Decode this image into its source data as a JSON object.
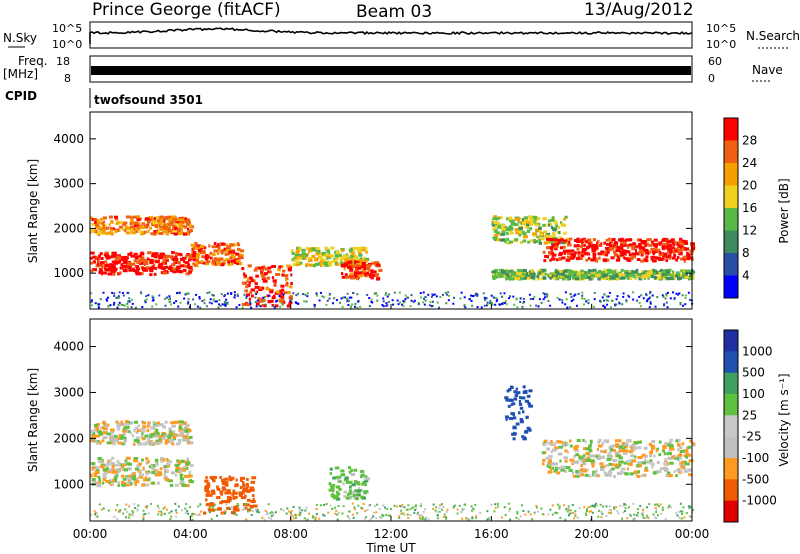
{
  "header": {
    "station": "Prince George (fitACF)",
    "beam": "Beam 03",
    "date": "13/Aug/2012"
  },
  "top_panels": {
    "nsky_label": "N.Sky",
    "nsky_ticks": [
      "10^5",
      "10^0"
    ],
    "nsearch_label": "N.Search",
    "nsearch_ticks": [
      "10^5",
      "10^0"
    ],
    "freq_label_line1": "Freq.",
    "freq_label_line2": "[MHz]",
    "freq_ticks": [
      "18",
      "8"
    ],
    "nave_label": "Nave",
    "nave_ticks": [
      "60",
      "0"
    ],
    "cpid_label": "CPID",
    "cpid_value": "twofsound  3501"
  },
  "colors": {
    "power_scale": [
      "#0000ff",
      "#2b4ea5",
      "#3d8a5c",
      "#58b947",
      "#f0d020",
      "#f5a000",
      "#f06010",
      "#ff0000"
    ],
    "velocity_scale": [
      "#e00000",
      "#f05a00",
      "#ff9a20",
      "#c0c0c0",
      "#c8c8c8",
      "#60c040",
      "#40a060",
      "#2050b0",
      "#2030a0"
    ]
  },
  "chart_data": [
    {
      "type": "heatmap",
      "name": "power_panel",
      "ylabel": "Slant Range [km]",
      "yticks": [
        "4000",
        "3000",
        "2000",
        "1000"
      ],
      "ylim": [
        200,
        4600
      ],
      "xlim": [
        "00:00",
        "24:00"
      ],
      "colorbar_label": "Power [dB]",
      "colorbar_ticks": [
        "28",
        "24",
        "20",
        "16",
        "12",
        "8",
        "4"
      ],
      "bands": [
        {
          "x": [
            0,
            4
          ],
          "y": [
            1900,
            2300
          ],
          "v": 22
        },
        {
          "x": [
            0,
            4
          ],
          "y": [
            1000,
            1500
          ],
          "v": 28
        },
        {
          "x": [
            4,
            6
          ],
          "y": [
            1200,
            1700
          ],
          "v": 24
        },
        {
          "x": [
            6,
            8
          ],
          "y": [
            300,
            1200
          ],
          "v": 26
        },
        {
          "x": [
            8,
            11
          ],
          "y": [
            1200,
            1600
          ],
          "v": 16
        },
        {
          "x": [
            10,
            11.5
          ],
          "y": [
            900,
            1300
          ],
          "v": 26
        },
        {
          "x": [
            16,
            19
          ],
          "y": [
            1700,
            2300
          ],
          "v": 14
        },
        {
          "x": [
            18,
            24
          ],
          "y": [
            1300,
            1800
          ],
          "v": 28
        },
        {
          "x": [
            16,
            24
          ],
          "y": [
            900,
            1100
          ],
          "v": 12
        }
      ]
    },
    {
      "type": "heatmap",
      "name": "velocity_panel",
      "ylabel": "Slant Range [km]",
      "yticks": [
        "4000",
        "3000",
        "2000",
        "1000"
      ],
      "ylim": [
        200,
        4600
      ],
      "xlim": [
        "00:00",
        "24:00"
      ],
      "xticks": [
        "00:00",
        "04:00",
        "08:00",
        "12:00",
        "16:00",
        "20:00",
        "00:00"
      ],
      "xlabel": "Time UT",
      "colorbar_label": "Velocity [m s⁻¹]",
      "colorbar_ticks": [
        "1000",
        "500",
        "100",
        "25",
        "-25",
        "-100",
        "-500",
        "-1000"
      ],
      "bands": [
        {
          "x": [
            0,
            4
          ],
          "y": [
            1900,
            2400
          ],
          "v": 0
        },
        {
          "x": [
            0,
            4
          ],
          "y": [
            1000,
            1600
          ],
          "v": 0
        },
        {
          "x": [
            4.5,
            6.5
          ],
          "y": [
            400,
            1200
          ],
          "v": -300
        },
        {
          "x": [
            9.5,
            11
          ],
          "y": [
            700,
            1400
          ],
          "v": 60
        },
        {
          "x": [
            16.5,
            17.5
          ],
          "y": [
            2000,
            3200
          ],
          "v": 800
        },
        {
          "x": [
            18,
            24
          ],
          "y": [
            1200,
            2000
          ],
          "v": 0
        }
      ]
    }
  ],
  "xaxis": {
    "labels": [
      "00:00",
      "04:00",
      "08:00",
      "12:00",
      "16:00",
      "20:00",
      "00:00"
    ],
    "title": "Time UT"
  }
}
